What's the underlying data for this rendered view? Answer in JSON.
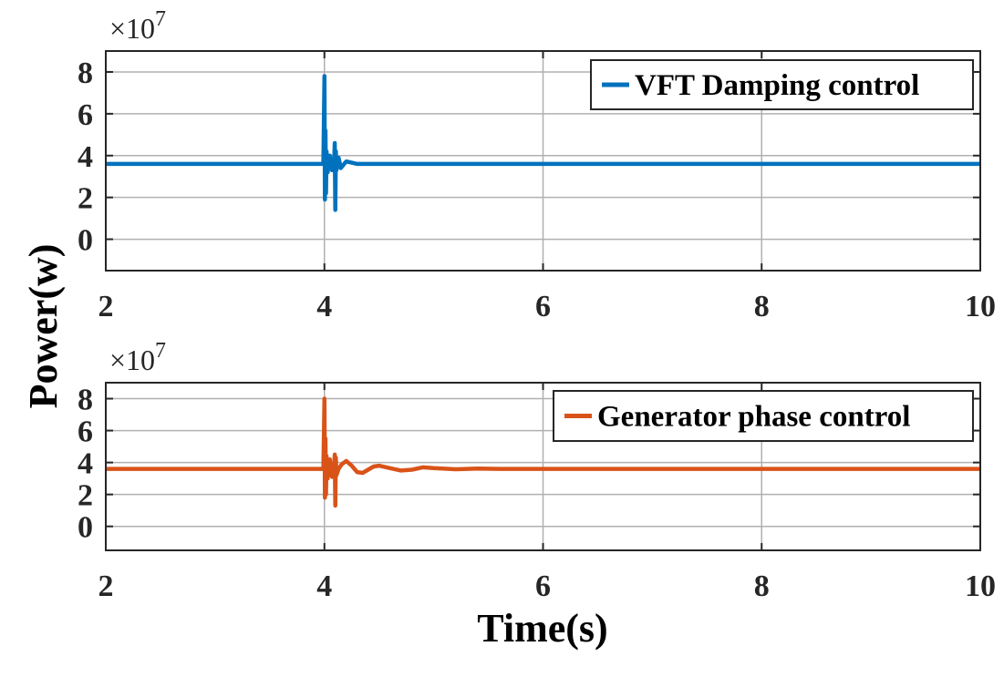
{
  "figure": {
    "ylabel": "Power(w)",
    "xlabel": "Time(s)"
  },
  "chart_data": [
    {
      "type": "line",
      "y_exponent_label": "×10",
      "y_exponent_power": "7",
      "xlim": [
        2,
        10
      ],
      "ylim": [
        -1.5,
        9
      ],
      "xticks": [
        2,
        4,
        6,
        8,
        10
      ],
      "yticks": [
        0,
        2,
        4,
        6,
        8
      ],
      "grid": true,
      "legend_position": "top-right",
      "series": [
        {
          "name": "VFT Damping control",
          "color": "#0072BD",
          "x": [
            2,
            3.99,
            4.0,
            4.005,
            4.01,
            4.015,
            4.02,
            4.03,
            4.05,
            4.07,
            4.09,
            4.095,
            4.1,
            4.105,
            4.11,
            4.13,
            4.15,
            4.2,
            4.3,
            4.5,
            10
          ],
          "y": [
            3.6,
            3.6,
            7.8,
            1.9,
            5.2,
            2.2,
            4.2,
            3.2,
            4.0,
            3.3,
            3.8,
            4.6,
            1.4,
            4.2,
            3.3,
            3.9,
            3.4,
            3.72,
            3.6,
            3.6,
            3.6
          ]
        }
      ]
    },
    {
      "type": "line",
      "y_exponent_label": "×10",
      "y_exponent_power": "7",
      "xlim": [
        2,
        10
      ],
      "ylim": [
        -1.5,
        9
      ],
      "xticks": [
        2,
        4,
        6,
        8,
        10
      ],
      "yticks": [
        0,
        2,
        4,
        6,
        8
      ],
      "grid": true,
      "legend_position": "top-right",
      "series": [
        {
          "name": "Generator phase control",
          "color": "#D95319",
          "x": [
            2,
            3.99,
            4.0,
            4.005,
            4.01,
            4.015,
            4.02,
            4.03,
            4.05,
            4.07,
            4.09,
            4.095,
            4.1,
            4.105,
            4.11,
            4.13,
            4.16,
            4.2,
            4.25,
            4.3,
            4.35,
            4.4,
            4.45,
            4.5,
            4.6,
            4.7,
            4.8,
            4.9,
            5.0,
            5.2,
            5.4,
            5.6,
            10
          ],
          "y": [
            3.6,
            3.6,
            8.0,
            1.8,
            5.5,
            2.0,
            4.4,
            3.0,
            4.2,
            3.1,
            3.9,
            4.5,
            1.3,
            4.3,
            3.2,
            3.6,
            3.9,
            4.1,
            3.8,
            3.4,
            3.35,
            3.55,
            3.75,
            3.8,
            3.65,
            3.5,
            3.55,
            3.7,
            3.65,
            3.58,
            3.62,
            3.6,
            3.6
          ]
        }
      ]
    }
  ]
}
